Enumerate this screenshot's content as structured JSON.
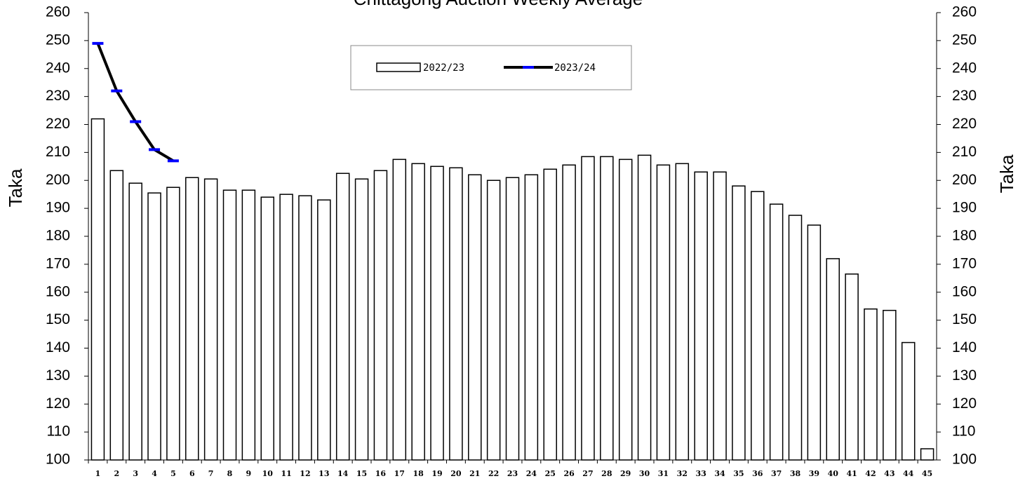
{
  "chart_data": {
    "type": "bar_line",
    "title": "Chittagong Auction Weekly Average",
    "y_label": "Taka",
    "y2_label": "Taka",
    "categories": [
      "1",
      "2",
      "3",
      "4",
      "5",
      "6",
      "7",
      "8",
      "9",
      "10",
      "11",
      "12",
      "13",
      "14",
      "15",
      "16",
      "17",
      "18",
      "19",
      "20",
      "21",
      "22",
      "23",
      "24",
      "25",
      "26",
      "27",
      "28",
      "29",
      "30",
      "31",
      "32",
      "33",
      "34",
      "35",
      "36",
      "37",
      "38",
      "39",
      "40",
      "41",
      "42",
      "43",
      "44",
      "45"
    ],
    "series": [
      {
        "name": "2022/23",
        "kind": "bar",
        "color": "#ffffff",
        "values": [
          222,
          203.5,
          199,
          195.5,
          197.5,
          201,
          200.5,
          196.5,
          196.5,
          194,
          195,
          194.5,
          193,
          202.5,
          200.5,
          203.5,
          207.5,
          206,
          205,
          204.5,
          202,
          200,
          201,
          202,
          204,
          205.5,
          208.5,
          208.5,
          207.5,
          209,
          205.5,
          206,
          203,
          203,
          198,
          196,
          191.5,
          187.5,
          184,
          172,
          166.5,
          154,
          153.5,
          142,
          104
        ]
      },
      {
        "name": "2023/24",
        "kind": "line",
        "color": "#000000",
        "marker_color": "#0000ff",
        "values": [
          249,
          232,
          221,
          211,
          207,
          null,
          null,
          null,
          null,
          null,
          null,
          null,
          null,
          null,
          null,
          null,
          null,
          null,
          null,
          null,
          null,
          null,
          null,
          null,
          null,
          null,
          null,
          null,
          null,
          null,
          null,
          null,
          null,
          null,
          null,
          null,
          null,
          null,
          null,
          null,
          null,
          null,
          null,
          null,
          null
        ]
      }
    ],
    "ylim": [
      100,
      260
    ],
    "yticks": [
      100,
      110,
      120,
      130,
      140,
      150,
      160,
      170,
      180,
      190,
      200,
      210,
      220,
      230,
      240,
      250,
      260
    ],
    "y2lim": [
      100,
      260
    ],
    "y2ticks": [
      100,
      110,
      120,
      130,
      140,
      150,
      160,
      170,
      180,
      190,
      200,
      210,
      220,
      230,
      240,
      250,
      260
    ],
    "grid": false
  }
}
